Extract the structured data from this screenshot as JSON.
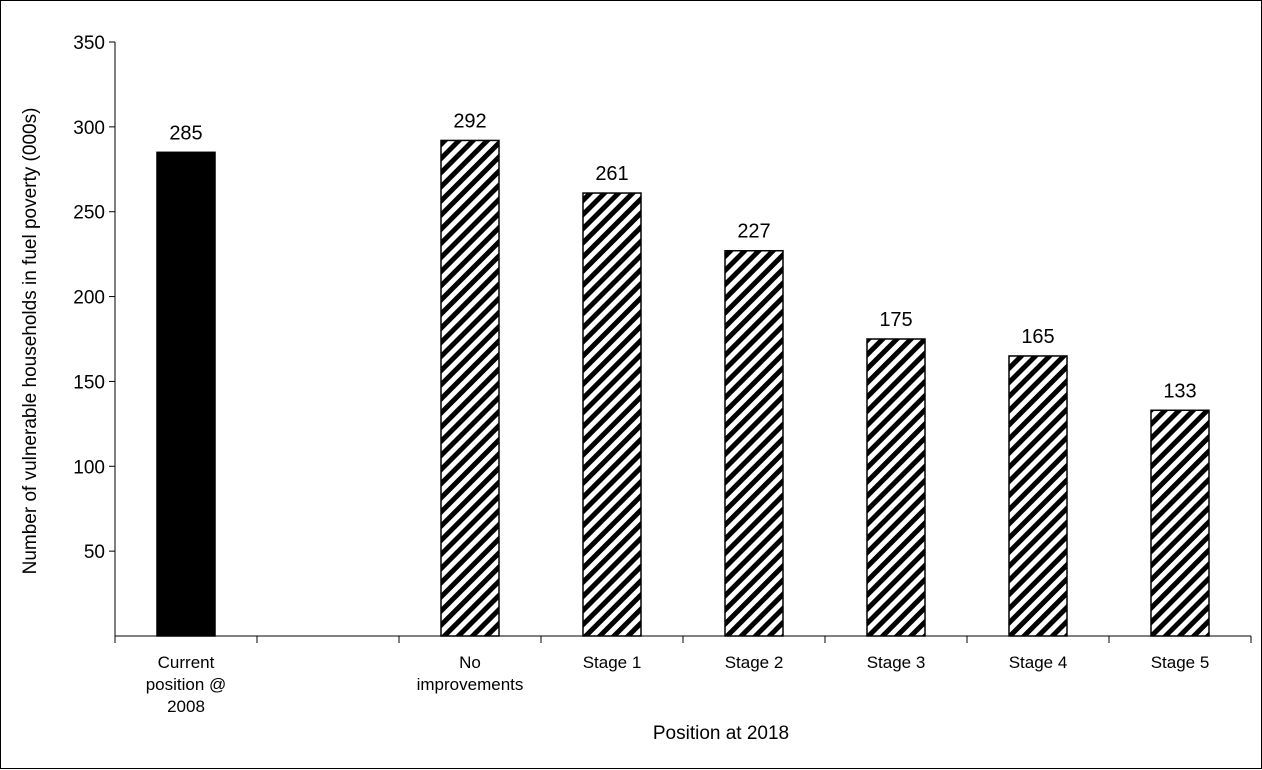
{
  "chart_data": {
    "type": "bar",
    "categories": [
      [
        "Current",
        "position @",
        "2008"
      ],
      [
        "No",
        "improvements"
      ],
      [
        "Stage 1"
      ],
      [
        "Stage 2"
      ],
      [
        "Stage 3"
      ],
      [
        "Stage 4"
      ],
      [
        "Stage 5"
      ]
    ],
    "values": [
      285,
      292,
      261,
      227,
      175,
      165,
      133
    ],
    "data_labels": [
      "285",
      "292",
      "261",
      "227",
      "175",
      "165",
      "133"
    ],
    "bar_styles": [
      "solid",
      "hatched",
      "hatched",
      "hatched",
      "hatched",
      "hatched",
      "hatched"
    ],
    "xlabel": "Position at 2018",
    "ylabel": "Number of vulnerable households in fuel poverty (000s)",
    "ylim": [
      0,
      350
    ],
    "yticks": [
      50,
      100,
      150,
      200,
      250,
      300,
      350
    ],
    "grid": false,
    "legend": "none"
  },
  "colors": {
    "bar_solid": "#000000",
    "bar_outline": "#000000",
    "hatch_line": "#000000",
    "hatch_background": "#ffffff",
    "axis": "#000000"
  }
}
